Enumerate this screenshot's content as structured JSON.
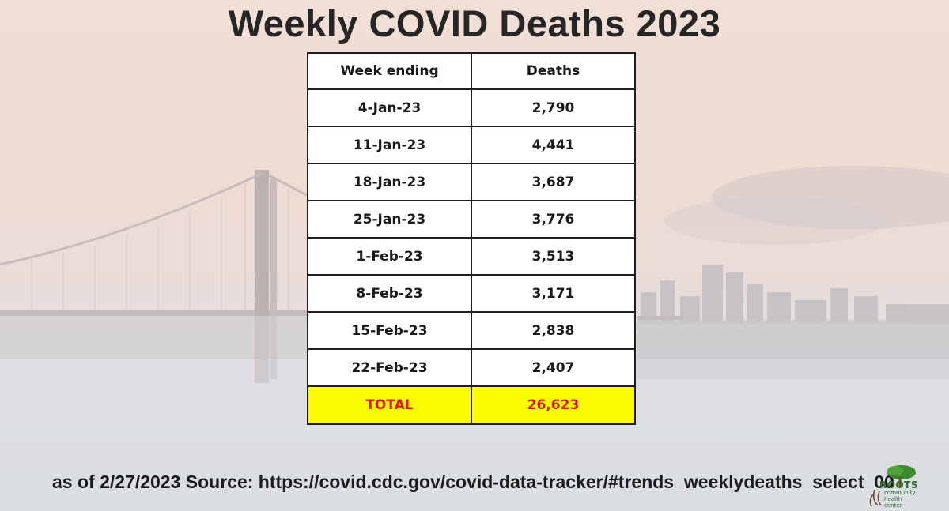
{
  "title": "Weekly COVID Deaths 2023",
  "table": {
    "headers": [
      "Week ending",
      "Deaths"
    ],
    "rows": [
      {
        "week": "4-Jan-23",
        "deaths": "2,790"
      },
      {
        "week": "11-Jan-23",
        "deaths": "4,441"
      },
      {
        "week": "18-Jan-23",
        "deaths": "3,687"
      },
      {
        "week": "25-Jan-23",
        "deaths": "3,776"
      },
      {
        "week": "1-Feb-23",
        "deaths": "3,513"
      },
      {
        "week": "8-Feb-23",
        "deaths": "3,171"
      },
      {
        "week": "15-Feb-23",
        "deaths": "2,838"
      },
      {
        "week": "22-Feb-23",
        "deaths": "2,407"
      }
    ],
    "total": {
      "label": "TOTAL",
      "value": "26,623"
    }
  },
  "source": "as of 2/27/2023 Source: https://covid.cdc.gov/covid-data-tracker/#trends_weeklydeaths_select_00",
  "logo": {
    "name": "ROOTS",
    "sub": "community health center"
  },
  "colors": {
    "total_bg": "#fbfb00",
    "total_text": "#e0141e",
    "title": "#262626"
  }
}
